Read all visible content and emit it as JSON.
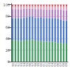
{
  "chart_data": {
    "type": "bar",
    "stacked": true,
    "grid": true,
    "categories": [
      "90",
      "91",
      "92",
      "93",
      "94",
      "95",
      "96",
      "97",
      "98",
      "99",
      "00",
      "01",
      "02",
      "03",
      "04",
      "05",
      "06",
      "07",
      "08",
      "09"
    ],
    "series": [
      {
        "color": "#3a9a5c",
        "values": [
          38,
          37,
          37,
          36,
          37,
          38,
          38,
          39,
          37,
          36,
          36,
          35,
          35,
          35,
          35,
          34,
          33,
          33,
          32,
          32
        ]
      },
      {
        "color": "#4472c4",
        "values": [
          38,
          39,
          39,
          40,
          40,
          40,
          41,
          40,
          40,
          41,
          42,
          41,
          41,
          41,
          41,
          42,
          42,
          41,
          40,
          40
        ]
      },
      {
        "color": "#b07abf",
        "values": [
          16,
          16,
          16,
          16,
          16,
          15,
          14,
          14,
          15,
          15,
          14,
          15,
          15,
          15,
          15,
          15,
          16,
          17,
          18,
          18
        ]
      },
      {
        "color": "#dda0c0",
        "values": [
          5,
          5,
          5,
          5,
          4,
          4,
          4,
          4,
          5,
          5,
          5,
          6,
          6,
          6,
          6,
          6,
          6,
          6,
          7,
          7
        ]
      },
      {
        "color": "#e05050",
        "values": [
          3,
          3,
          3,
          3,
          3,
          3,
          3,
          3,
          3,
          3,
          3,
          3,
          3,
          3,
          3,
          3,
          3,
          3,
          3,
          3
        ]
      }
    ],
    "ylim": [
      0,
      102
    ],
    "yticks": [
      0,
      20,
      40,
      60,
      80,
      100
    ]
  }
}
